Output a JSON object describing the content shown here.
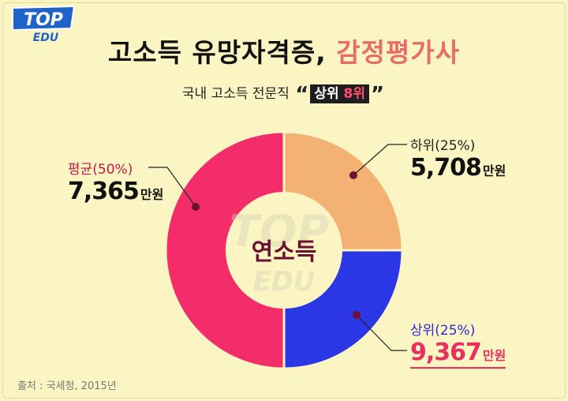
{
  "header": {
    "logo_top": "TOP",
    "logo_edu": "EDU",
    "title_main": "고소득 유망자격증, ",
    "title_accent": "감정평가사",
    "subtitle_text": "국내 고소득 전문직",
    "quote_open": "“",
    "quote_close": "”",
    "tag_text": "상위 ",
    "tag_highlight": "8위"
  },
  "chart_data": {
    "type": "pie",
    "variant": "donut",
    "center_label": "연소득",
    "slices": [
      {
        "name": "하위(25%)",
        "share": 25,
        "value": "5,708",
        "unit": "만원",
        "color": "#f3b274",
        "name_color": "#222222",
        "value_color": "#111111"
      },
      {
        "name": "상위(25%)",
        "share": 25,
        "value": "9,367",
        "unit": "만원",
        "color": "#2b37e4",
        "name_color": "#2b2bd8",
        "value_color": "#e8305f"
      },
      {
        "name": "평균(50%)",
        "share": 50,
        "value": "7,365",
        "unit": "만원",
        "color": "#f32d6a",
        "name_color": "#c01848",
        "value_color": "#111111"
      }
    ]
  },
  "footer": {
    "source": "출처 : 국세청, 2015년"
  }
}
